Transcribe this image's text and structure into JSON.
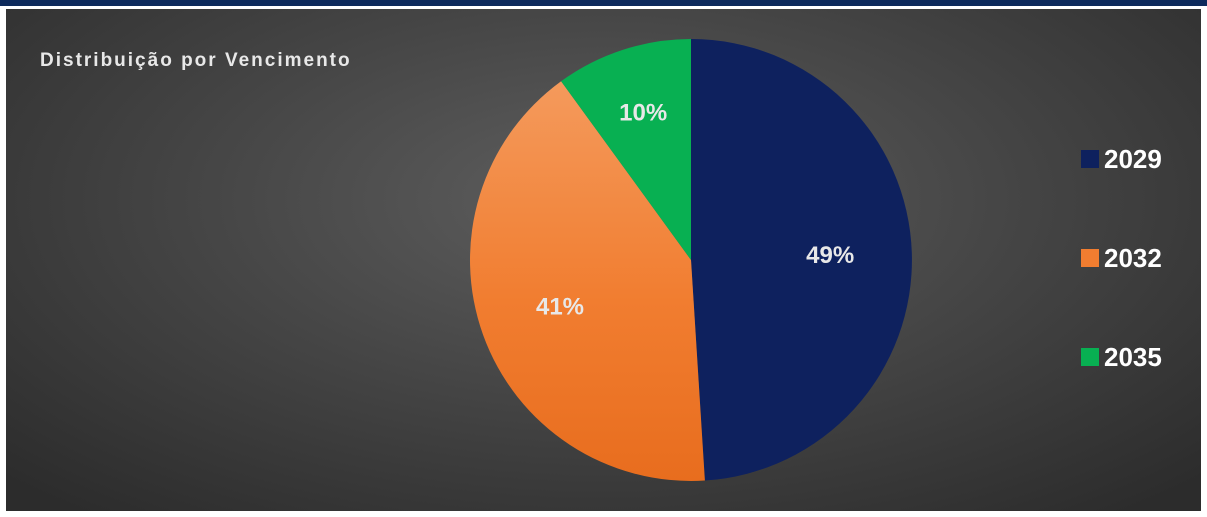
{
  "chart_data": {
    "type": "pie",
    "title": "Distribuição por Vencimento",
    "categories": [
      "2029",
      "2032",
      "2035"
    ],
    "values": [
      49,
      41,
      10
    ],
    "data_labels": [
      "49%",
      "41%",
      "10%"
    ],
    "colors": [
      "#0e215e",
      "#f17d30",
      "#08b052"
    ],
    "label_color": "#e8e8e8",
    "legend_position": "right"
  }
}
